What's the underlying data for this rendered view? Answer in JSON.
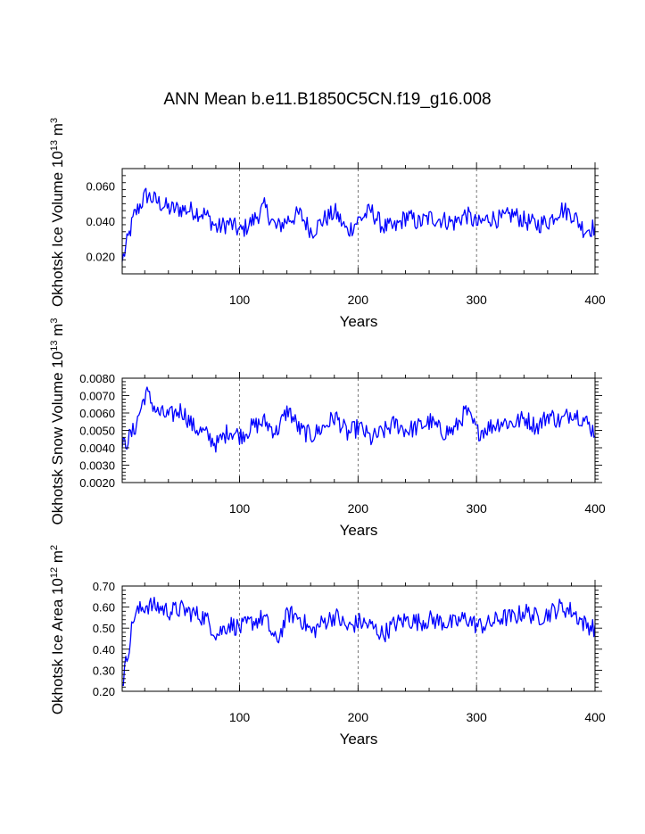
{
  "figure": {
    "title": "ANN Mean b.e11.B1850C5CN.f19_g16.008"
  },
  "chart_data": [
    {
      "type": "line",
      "id": "ice-volume",
      "title": "",
      "ylabel": "Okhotsk Ice Volume 10",
      "ylabel_exp": "13",
      "ylabel_unit": " m",
      "ylabel_unit_exp": "3",
      "xlabel": "Years",
      "xlim": [
        1,
        400
      ],
      "ylim": [
        0.01,
        0.07
      ],
      "xticks": [
        100,
        200,
        300,
        400
      ],
      "xtick_labels": [
        "100",
        "200",
        "300",
        "400"
      ],
      "yticks": [
        0.02,
        0.04,
        0.06
      ],
      "ytick_labels": [
        "0.020",
        "0.040",
        "0.060"
      ],
      "vlines": [
        100,
        200,
        300
      ],
      "color": "#0000ff",
      "series": [
        {
          "name": "Okhotsk Ice Volume",
          "x_start": 1,
          "x_step": 10,
          "values": [
            0.017,
            0.043,
            0.055,
            0.051,
            0.047,
            0.047,
            0.046,
            0.044,
            0.036,
            0.039,
            0.034,
            0.04,
            0.048,
            0.036,
            0.041,
            0.044,
            0.034,
            0.041,
            0.045,
            0.034,
            0.041,
            0.046,
            0.037,
            0.036,
            0.043,
            0.039,
            0.042,
            0.041,
            0.039,
            0.044,
            0.038,
            0.042,
            0.041,
            0.044,
            0.04,
            0.038,
            0.04,
            0.047,
            0.044,
            0.035,
            0.037
          ]
        }
      ]
    },
    {
      "type": "line",
      "id": "snow-volume",
      "title": "",
      "ylabel": "Okhotsk Snow Volume 10",
      "ylabel_exp": "13",
      "ylabel_unit": " m",
      "ylabel_unit_exp": "3",
      "xlabel": "Years",
      "xlim": [
        1,
        400
      ],
      "ylim": [
        0.002,
        0.008
      ],
      "xticks": [
        100,
        200,
        300,
        400
      ],
      "xtick_labels": [
        "100",
        "200",
        "300",
        "400"
      ],
      "yticks": [
        0.002,
        0.003,
        0.004,
        0.005,
        0.006,
        0.007,
        0.008
      ],
      "ytick_labels": [
        "0.0020",
        "0.0030",
        "0.0040",
        "0.0050",
        "0.0060",
        "0.0070",
        "0.0080"
      ],
      "vlines": [
        100,
        200,
        300
      ],
      "color": "#0000ff",
      "series": [
        {
          "name": "Okhotsk Snow Volume",
          "x_start": 1,
          "x_step": 10,
          "values": [
            0.004,
            0.005,
            0.0072,
            0.006,
            0.0058,
            0.0062,
            0.0052,
            0.0048,
            0.0042,
            0.005,
            0.0047,
            0.0052,
            0.0055,
            0.0049,
            0.0062,
            0.005,
            0.0047,
            0.0052,
            0.0058,
            0.0048,
            0.0052,
            0.0045,
            0.0049,
            0.0054,
            0.005,
            0.0052,
            0.0055,
            0.0049,
            0.005,
            0.0061,
            0.0049,
            0.0052,
            0.0055,
            0.0054,
            0.0057,
            0.0052,
            0.0059,
            0.0055,
            0.0061,
            0.0056,
            0.0048
          ]
        }
      ]
    },
    {
      "type": "line",
      "id": "ice-area",
      "title": "",
      "ylabel": "Okhotsk Ice Area 10",
      "ylabel_exp": "12",
      "ylabel_unit": " m",
      "ylabel_unit_exp": "2",
      "xlabel": "Years",
      "xlim": [
        1,
        400
      ],
      "ylim": [
        0.2,
        0.7
      ],
      "xticks": [
        100,
        200,
        300,
        400
      ],
      "xtick_labels": [
        "100",
        "200",
        "300",
        "400"
      ],
      "yticks": [
        0.2,
        0.3,
        0.4,
        0.5,
        0.6,
        0.7
      ],
      "ytick_labels": [
        "0.20",
        "0.30",
        "0.40",
        "0.50",
        "0.60",
        "0.70"
      ],
      "vlines": [
        100,
        200,
        300
      ],
      "color": "#0000ff",
      "series": [
        {
          "name": "Okhotsk Ice Area",
          "x_start": 1,
          "x_step": 10,
          "values": [
            0.23,
            0.56,
            0.61,
            0.6,
            0.58,
            0.59,
            0.57,
            0.55,
            0.47,
            0.52,
            0.5,
            0.53,
            0.55,
            0.43,
            0.57,
            0.55,
            0.48,
            0.53,
            0.56,
            0.5,
            0.53,
            0.51,
            0.47,
            0.52,
            0.54,
            0.53,
            0.54,
            0.53,
            0.52,
            0.55,
            0.51,
            0.52,
            0.55,
            0.55,
            0.58,
            0.55,
            0.57,
            0.6,
            0.58,
            0.52,
            0.5
          ]
        }
      ]
    }
  ]
}
